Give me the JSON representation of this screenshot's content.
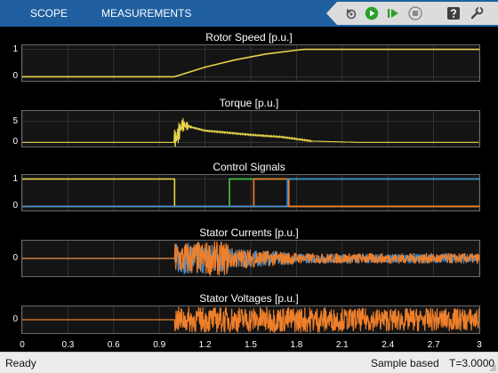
{
  "toolbar": {
    "tabs": [
      {
        "label": "SCOPE"
      },
      {
        "label": "MEASUREMENTS"
      }
    ],
    "controls": [
      {
        "name": "step-back-icon"
      },
      {
        "name": "run-icon"
      },
      {
        "name": "step-forward-icon"
      },
      {
        "name": "stop-icon"
      },
      {
        "name": "help-icon"
      },
      {
        "name": "settings-icon"
      }
    ]
  },
  "colors": {
    "yellow": "#e8d44d",
    "green": "#42c743",
    "orange": "#ef7f2a",
    "blue": "#3a8fd8"
  },
  "chart_data": [
    {
      "type": "line",
      "title": "Rotor Speed [p.u.]",
      "yticks": [
        "1",
        "0"
      ],
      "ylim": [
        -0.15,
        1.15
      ],
      "xlim": [
        0,
        3
      ],
      "grid": true,
      "series": [
        {
          "color": "#e8d44d",
          "x": [
            0,
            1.0,
            1.2,
            1.4,
            1.6,
            1.8,
            1.85,
            3
          ],
          "y": [
            0,
            0,
            0.35,
            0.62,
            0.83,
            0.97,
            1.0,
            1.0
          ]
        }
      ]
    },
    {
      "type": "line",
      "title": "Torque [p.u.]",
      "yticks": [
        "5",
        "0"
      ],
      "ylim": [
        -1,
        7.5
      ],
      "xlim": [
        0,
        3
      ],
      "grid": true,
      "series": [
        {
          "color": "#e8d44d",
          "x": [
            0,
            1.0,
            1.05,
            1.2,
            1.35,
            1.5,
            1.7,
            1.9,
            2.2,
            3
          ],
          "y": [
            0,
            0,
            4.2,
            2.8,
            2.3,
            1.8,
            1.3,
            0.3,
            0,
            0
          ]
        }
      ]
    },
    {
      "type": "line",
      "title": "Control Signals",
      "yticks": [
        "1",
        "0"
      ],
      "ylim": [
        -0.15,
        1.15
      ],
      "xlim": [
        0,
        3
      ],
      "grid": true,
      "series": [
        {
          "color": "#e8d44d",
          "x": [
            0,
            1.0,
            1.0,
            3
          ],
          "y": [
            1,
            1,
            0,
            0
          ]
        },
        {
          "color": "#42c743",
          "x": [
            0,
            1.36,
            1.36,
            3
          ],
          "y": [
            0,
            0,
            1,
            1
          ]
        },
        {
          "color": "#ef7f2a",
          "x": [
            0,
            1.52,
            1.52,
            1.75,
            1.75,
            3
          ],
          "y": [
            0,
            0,
            1,
            1,
            0,
            0
          ]
        },
        {
          "color": "#3a8fd8",
          "x": [
            0,
            1.74,
            1.74,
            3
          ],
          "y": [
            0,
            0,
            1,
            1
          ]
        }
      ]
    },
    {
      "type": "line",
      "title": "Stator Currents [p.u.]",
      "yticks": [
        "0"
      ],
      "ylim": [
        -1,
        1
      ],
      "xlim": [
        0,
        3
      ],
      "grid": true,
      "series": [
        {
          "color": "#3a8fd8"
        },
        {
          "color": "#ef7f2a"
        }
      ]
    },
    {
      "type": "line",
      "title": "Stator Voltages [p.u.]",
      "yticks": [
        "0"
      ],
      "ylim": [
        -1,
        1
      ],
      "xlim": [
        0,
        3
      ],
      "grid": true,
      "series": [
        {
          "color": "#ef7f2a"
        }
      ]
    }
  ],
  "xaxis": {
    "ticks": [
      "0",
      "0.3",
      "0.6",
      "0.9",
      "1.2",
      "1.5",
      "1.8",
      "2.1",
      "2.4",
      "2.7",
      "3"
    ],
    "values": [
      0,
      0.3,
      0.6,
      0.9,
      1.2,
      1.5,
      1.8,
      2.1,
      2.4,
      2.7,
      3
    ]
  },
  "status": {
    "state": "Ready",
    "mode": "Sample based",
    "time": "T=3.0000"
  }
}
